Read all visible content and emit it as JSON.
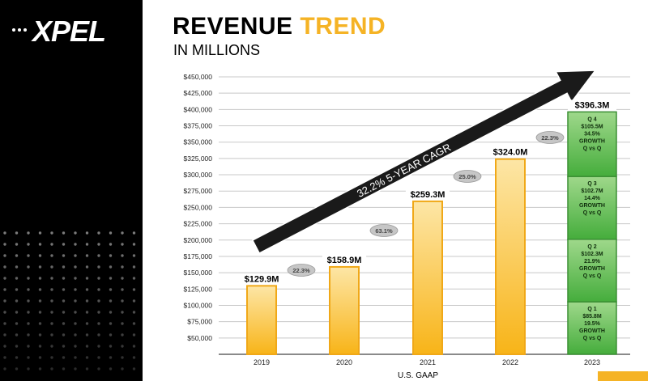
{
  "brand": {
    "logo_text": "XPEL"
  },
  "header": {
    "title_part1": "REVENUE",
    "title_part2": "TREND",
    "subtitle": "IN MILLIONS"
  },
  "colors": {
    "accent_yellow": "#f5b325",
    "bar_gradient_top": "#fde6a6",
    "bar_gradient_bottom": "#f8b418",
    "bar_outline": "#f0a818",
    "green_segment_top": "#9fd88b",
    "green_segment_bottom": "#45ad3c",
    "green_outline": "#3b8f34",
    "arrow": "#1a1a1a",
    "bubble_fill": "#c6c6c6"
  },
  "chart_data": {
    "type": "bar",
    "xlabel": "U.S. GAAP",
    "ylim": [
      25000,
      450000
    ],
    "yticks": [
      50000,
      75000,
      100000,
      125000,
      150000,
      175000,
      200000,
      225000,
      250000,
      275000,
      300000,
      325000,
      350000,
      375000,
      400000,
      425000,
      450000
    ],
    "ytick_labels": [
      "$50,000",
      "$75,000",
      "$100,000",
      "$125,000",
      "$150,000",
      "$175,000",
      "$200,000",
      "$225,000",
      "$250,000",
      "$275,000",
      "$300,000",
      "$325,000",
      "$350,000",
      "$375,000",
      "$400,000",
      "$425,000",
      "$450,000"
    ],
    "grid": true,
    "categories": [
      "2019",
      "2020",
      "2021",
      "2022",
      "2023"
    ],
    "values": [
      129900,
      158900,
      259300,
      324000,
      396300
    ],
    "value_labels": [
      "$129.9M",
      "$158.9M",
      "$259.3M",
      "$324.0M",
      "$396.3M"
    ],
    "growth_labels": [
      "22.3%",
      "63.1%",
      "25.0%",
      "22.3%"
    ],
    "quarters_2023": [
      {
        "quarter": "Q 1",
        "value": 85800,
        "value_label": "$85.8M",
        "growth": "19.5%",
        "growth_word": "GROWTH",
        "basis": "Q vs Q"
      },
      {
        "quarter": "Q 2",
        "value": 102300,
        "value_label": "$102.3M",
        "growth": "21.9%",
        "growth_word": "GROWTH",
        "basis": "Q vs Q"
      },
      {
        "quarter": "Q 3",
        "value": 102700,
        "value_label": "$102.7M",
        "growth": "14.4%",
        "growth_word": "GROWTH",
        "basis": "Q vs Q"
      },
      {
        "quarter": "Q 4",
        "value": 105500,
        "value_label": "$105.5M",
        "growth": "34.5%",
        "growth_word": "GROWTH",
        "basis": "Q vs Q"
      }
    ],
    "trend_label": "32.2% 5-YEAR CAGR"
  }
}
